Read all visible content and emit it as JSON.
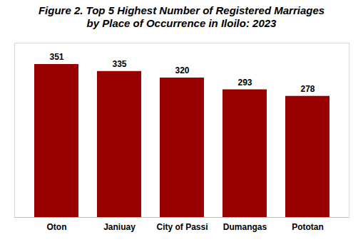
{
  "chart_data": {
    "type": "bar",
    "title": "Figure 2. Top 5 Highest Number of Registered Marriages\nby Place of Occurrence in Iloilo: 2023",
    "categories": [
      "Oton",
      "Janiuay",
      "City of Passi",
      "Dumangas",
      "Pototan"
    ],
    "values": [
      351,
      335,
      320,
      293,
      278
    ],
    "color": "#990000",
    "ylim": [
      0,
      400
    ],
    "data_labels": true,
    "tick_labels": "x"
  }
}
